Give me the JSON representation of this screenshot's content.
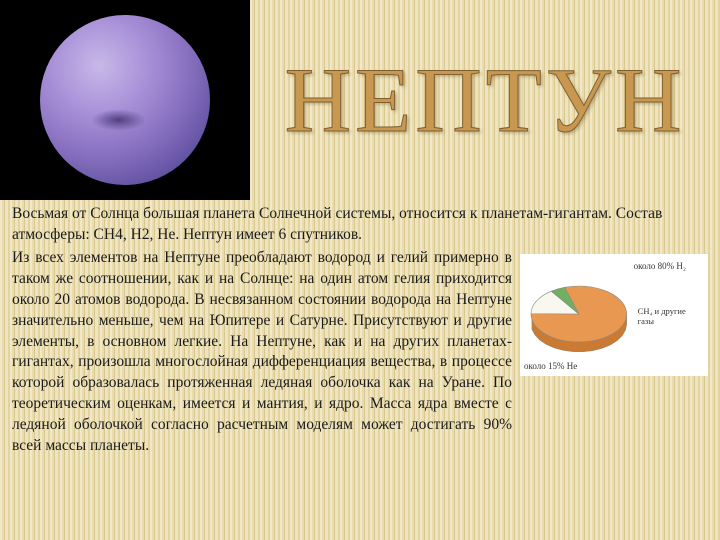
{
  "title": "НЕПТУН",
  "lead": "Восьмая от Солнца большая планета Солнечной системы, относится к планетам-гигантам. Состав атмосферы: CH4, H2, He. Нептун имеет 6 спутников.",
  "body": "Из всех элементов на Нептуне преобладают водород и гелий примерно в таком же соотношении, как и на Солнце: на один атом гелия приходится около 20 атомов водорода. В несвязанном состоянии водорода на Нептуне значительно меньше, чем на Юпитере и Сатурне. Присутствуют и другие элементы, в основном легкие. На Нептуне, как и на других планетах-гигантах, произошла многослойная дифференциация вещества, в процессе которой образовалась протяженная ледяная оболочка как на Уране. По теоретическим оценкам, имеется и мантия, и ядро. Масса ядра вместе с ледяной оболочкой согласно расчетным моделям может достигать 90% всей массы планеты.",
  "planet": {
    "highlight": "#c8b8e8",
    "midtone": "#8870c0",
    "shadow": "#302050",
    "box_bg": "#000000"
  },
  "chart": {
    "type": "pie",
    "label_top": "около 80% H₂",
    "label_bl": "около 15% He",
    "legend_right": "CH₄\nи другие\nгазы",
    "source": "",
    "slices": [
      {
        "label": "H₂",
        "value": 80,
        "color": "#e89850"
      },
      {
        "label": "He",
        "value": 15,
        "color": "#f8f8f0"
      },
      {
        "label": "CH₄ и др.",
        "value": 5,
        "color": "#70b060"
      }
    ],
    "background": "#ffffff",
    "stroke": "#888888"
  },
  "style": {
    "title_color": "#c89850",
    "title_stroke": "#806030",
    "title_fontsize": 92,
    "body_fontsize": 15.5,
    "body_color": "#1a1a1a",
    "bg_stripes": [
      "#f2e8c8",
      "#e8dcb0",
      "#d8c890",
      "#f0e4c0",
      "#e0d4a0"
    ]
  }
}
